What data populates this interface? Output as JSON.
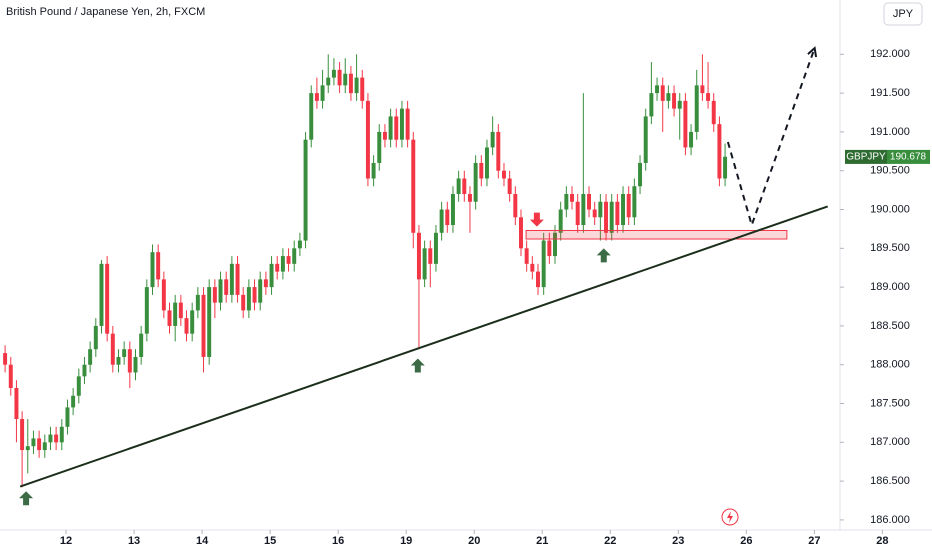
{
  "chart_data": {
    "type": "candlestick",
    "title": "British Pound / Japanese Yen, 2h, FXCM",
    "currency": "JPY",
    "symbol": "GBPJPY",
    "last_price": 190.678,
    "up_color": "#388e3c",
    "down_color": "#f23645",
    "xlim": [
      -0.9,
      163.5
    ],
    "ylim": [
      185.87,
      192.7
    ],
    "xticks": [
      {
        "value": 10.75,
        "label": "12"
      },
      {
        "value": 22.75,
        "label": "13"
      },
      {
        "value": 34.75,
        "label": "14"
      },
      {
        "value": 46.75,
        "label": "15"
      },
      {
        "value": 58.75,
        "label": "16"
      },
      {
        "value": 70.75,
        "label": "19"
      },
      {
        "value": 82.75,
        "label": "20"
      },
      {
        "value": 94.75,
        "label": "21"
      },
      {
        "value": 106.75,
        "label": "22"
      },
      {
        "value": 118.75,
        "label": "23"
      },
      {
        "value": 130.75,
        "label": "26"
      },
      {
        "value": 142.75,
        "label": "27"
      },
      {
        "value": 154.75,
        "label": "28"
      }
    ],
    "yticks": [
      {
        "value": 186,
        "label": "186.000"
      },
      {
        "value": 186.5,
        "label": "186.500"
      },
      {
        "value": 187,
        "label": "187.000"
      },
      {
        "value": 187.5,
        "label": "187.500"
      },
      {
        "value": 188,
        "label": "188.000"
      },
      {
        "value": 188.5,
        "label": "188.500"
      },
      {
        "value": 189,
        "label": "189.000"
      },
      {
        "value": 189.5,
        "label": "189.500"
      },
      {
        "value": 190,
        "label": "190.000"
      },
      {
        "value": 190.5,
        "label": "190.500"
      },
      {
        "value": 191,
        "label": "191.000"
      },
      {
        "value": 191.5,
        "label": "191.500"
      },
      {
        "value": 192,
        "label": "192.000"
      }
    ],
    "open": [
      188.15,
      188.0,
      187.7,
      187.3,
      186.9,
      186.95,
      187.05,
      186.9,
      187.0,
      187.1,
      187.0,
      187.2,
      187.45,
      187.6,
      187.85,
      188.0,
      188.2,
      188.5,
      189.3,
      188.4,
      188.0,
      188.1,
      188.2,
      187.9,
      188.1,
      188.4,
      189.0,
      189.45,
      189.1,
      188.7,
      188.5,
      188.8,
      188.6,
      188.4,
      188.7,
      188.9,
      188.1,
      189.0,
      188.8,
      189.1,
      188.9,
      189.3,
      188.9,
      188.7,
      189.0,
      188.8,
      189.1,
      189.0,
      189.3,
      189.2,
      189.4,
      189.3,
      189.5,
      189.6,
      190.9,
      191.5,
      191.4,
      191.6,
      191.7,
      191.8,
      191.6,
      191.75,
      191.5,
      191.7,
      191.4,
      190.4,
      190.6,
      191.0,
      190.9,
      191.2,
      190.9,
      191.3,
      190.9,
      189.7,
      189.1,
      189.5,
      189.3,
      189.7,
      190.0,
      189.8,
      190.2,
      190.4,
      190.2,
      190.1,
      190.6,
      190.4,
      190.8,
      191.0,
      190.5,
      190.4,
      190.2,
      189.9,
      189.5,
      189.3,
      189.2,
      189.0,
      189.6,
      189.4,
      189.7,
      190.0,
      190.2,
      190.1,
      189.8,
      190.2,
      190.0,
      189.9,
      190.1,
      189.7,
      190.1,
      189.8,
      190.2,
      189.9,
      190.3,
      190.6,
      191.2,
      191.5,
      191.6,
      191.4,
      191.5,
      191.3,
      191.4,
      190.8,
      191.0,
      191.6,
      191.5,
      191.4,
      191.1,
      190.4
    ],
    "high": [
      188.25,
      188.1,
      187.8,
      187.4,
      187.3,
      187.15,
      187.15,
      187.1,
      187.2,
      187.2,
      187.3,
      187.55,
      187.7,
      187.95,
      188.1,
      188.3,
      188.6,
      189.35,
      189.4,
      188.5,
      188.2,
      188.3,
      188.3,
      188.2,
      188.5,
      189.1,
      189.55,
      189.55,
      189.2,
      188.8,
      188.9,
      188.9,
      188.7,
      188.8,
      189.0,
      189.0,
      189.1,
      189.1,
      189.2,
      189.2,
      189.4,
      189.4,
      189.0,
      189.1,
      189.1,
      189.2,
      189.2,
      189.4,
      189.4,
      189.5,
      189.5,
      189.6,
      189.7,
      191.0,
      191.6,
      191.7,
      191.8,
      192.0,
      191.95,
      191.9,
      191.95,
      191.85,
      192.0,
      191.8,
      191.5,
      190.7,
      191.1,
      191.1,
      191.3,
      191.3,
      191.4,
      191.4,
      191.0,
      189.8,
      189.6,
      189.6,
      189.8,
      190.1,
      190.1,
      190.3,
      190.5,
      190.5,
      190.3,
      190.7,
      190.7,
      190.9,
      191.2,
      191.1,
      190.6,
      190.5,
      190.3,
      190.0,
      189.6,
      189.4,
      189.3,
      189.7,
      189.7,
      189.8,
      190.1,
      190.3,
      190.3,
      190.2,
      191.5,
      190.3,
      190.1,
      190.2,
      190.2,
      190.2,
      190.2,
      190.3,
      190.3,
      190.4,
      190.7,
      191.3,
      191.9,
      191.7,
      191.7,
      191.6,
      191.6,
      191.5,
      191.5,
      191.1,
      191.8,
      192.0,
      191.9,
      191.5,
      191.2,
      190.85
    ],
    "low": [
      187.9,
      187.6,
      187.0,
      186.42,
      186.6,
      186.85,
      186.8,
      186.8,
      186.9,
      186.9,
      186.9,
      187.1,
      187.35,
      187.5,
      187.75,
      187.9,
      188.1,
      188.4,
      188.3,
      187.9,
      187.9,
      188.0,
      187.7,
      187.8,
      188.0,
      188.3,
      188.9,
      189.0,
      188.6,
      188.4,
      188.3,
      188.5,
      188.3,
      188.3,
      188.6,
      187.9,
      188.0,
      188.6,
      188.7,
      188.8,
      188.8,
      188.8,
      188.6,
      188.6,
      188.7,
      188.7,
      188.9,
      188.9,
      189.1,
      189.1,
      189.2,
      189.2,
      189.4,
      189.5,
      190.8,
      191.3,
      191.3,
      191.5,
      191.6,
      191.5,
      191.5,
      191.4,
      191.4,
      191.3,
      190.3,
      190.3,
      190.5,
      190.8,
      190.8,
      190.8,
      190.8,
      190.8,
      189.5,
      188.2,
      189.0,
      189.0,
      189.2,
      189.6,
      189.7,
      189.7,
      190.1,
      190.1,
      189.7,
      190.0,
      190.3,
      190.3,
      190.7,
      190.4,
      190.3,
      190.1,
      189.8,
      189.4,
      189.2,
      189.1,
      188.9,
      188.9,
      189.3,
      189.3,
      189.6,
      189.9,
      190.0,
      189.7,
      189.7,
      189.9,
      189.8,
      189.6,
      189.6,
      189.6,
      189.7,
      189.7,
      189.8,
      189.8,
      190.2,
      190.5,
      191.1,
      191.4,
      191.0,
      191.3,
      191.2,
      190.9,
      190.7,
      190.7,
      190.9,
      191.4,
      191.3,
      191.0,
      190.3,
      190.3
    ],
    "close": [
      188.0,
      187.7,
      187.3,
      186.9,
      186.95,
      187.05,
      186.9,
      187.0,
      187.1,
      187.0,
      187.2,
      187.45,
      187.6,
      187.85,
      188.0,
      188.2,
      188.5,
      189.3,
      188.4,
      188.0,
      188.1,
      188.2,
      187.9,
      188.1,
      188.4,
      189.0,
      189.45,
      189.1,
      188.7,
      188.5,
      188.8,
      188.6,
      188.4,
      188.7,
      188.9,
      188.1,
      189.0,
      188.8,
      189.1,
      188.9,
      189.3,
      188.9,
      188.7,
      189.0,
      188.8,
      189.1,
      189.0,
      189.3,
      189.2,
      189.4,
      189.3,
      189.5,
      189.6,
      190.9,
      191.5,
      191.4,
      191.6,
      191.7,
      191.8,
      191.6,
      191.75,
      191.5,
      191.7,
      191.4,
      190.4,
      190.6,
      191.0,
      190.9,
      191.2,
      190.9,
      191.3,
      190.9,
      189.7,
      189.1,
      189.5,
      189.3,
      189.7,
      190.0,
      189.8,
      190.2,
      190.4,
      190.2,
      190.1,
      190.6,
      190.4,
      190.8,
      191.0,
      190.5,
      190.4,
      190.2,
      189.9,
      189.5,
      189.3,
      189.2,
      189.0,
      189.6,
      189.4,
      189.7,
      190.0,
      190.2,
      190.1,
      189.8,
      190.2,
      190.0,
      189.9,
      190.1,
      189.7,
      190.1,
      189.8,
      190.2,
      189.9,
      190.3,
      190.6,
      191.2,
      191.5,
      191.6,
      191.4,
      191.5,
      191.3,
      191.4,
      190.8,
      191.0,
      191.6,
      191.5,
      191.4,
      191.1,
      190.4,
      190.68
    ],
    "trendline": {
      "x": [
        2.65,
        145.1
      ],
      "y": [
        186.43,
        190.04
      ]
    },
    "zone": {
      "x": [
        91.9,
        137.9
      ],
      "y": [
        189.62,
        189.73
      ]
    },
    "projection": {
      "x": [
        127.5,
        131.7,
        142.8
      ],
      "y": [
        190.87,
        189.8,
        192.08
      ]
    },
    "up_arrows": {
      "x": [
        3.7,
        72.8,
        105.6
      ],
      "y": [
        186.37,
        188.08,
        189.5
      ]
    },
    "down_arrows": {
      "x": [
        93.8
      ],
      "y": [
        189.78
      ]
    }
  }
}
